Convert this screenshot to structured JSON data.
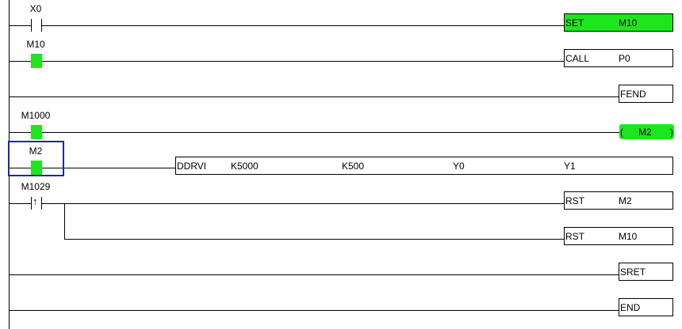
{
  "colors": {
    "active": "#1ee61e",
    "selection": "#1a2a9a",
    "line": "#000000"
  },
  "rungs": [
    {
      "contact": {
        "label": "X0",
        "type": "normally-open",
        "active": false
      },
      "instruction": {
        "op": "SET",
        "args": [
          "M10"
        ],
        "active": true
      }
    },
    {
      "contact": {
        "label": "M10",
        "type": "normally-open",
        "active": true
      },
      "instruction": {
        "op": "CALL",
        "args": [
          "P0"
        ],
        "active": false
      }
    },
    {
      "instruction": {
        "op": "FEND",
        "args": []
      }
    },
    {
      "contact": {
        "label": "M1000",
        "type": "normally-open",
        "active": true
      },
      "coil": {
        "open": "(",
        "label": "M2",
        "close": ")",
        "active": true
      }
    },
    {
      "contact": {
        "label": "M2",
        "type": "normally-open",
        "active": true,
        "selected": true
      },
      "instruction": {
        "op": "DDRVI",
        "args": [
          "K5000",
          "K500",
          "Y0",
          "Y1"
        ]
      }
    },
    {
      "contact": {
        "label": "M1029",
        "type": "rising-edge",
        "active": false
      },
      "instruction": {
        "op": "RST",
        "args": [
          "M2"
        ]
      },
      "branch": {
        "op": "RST",
        "args": [
          "M10"
        ]
      }
    },
    {
      "instruction": {
        "op": "SRET",
        "args": []
      }
    },
    {
      "instruction": {
        "op": "END",
        "args": []
      }
    }
  ]
}
